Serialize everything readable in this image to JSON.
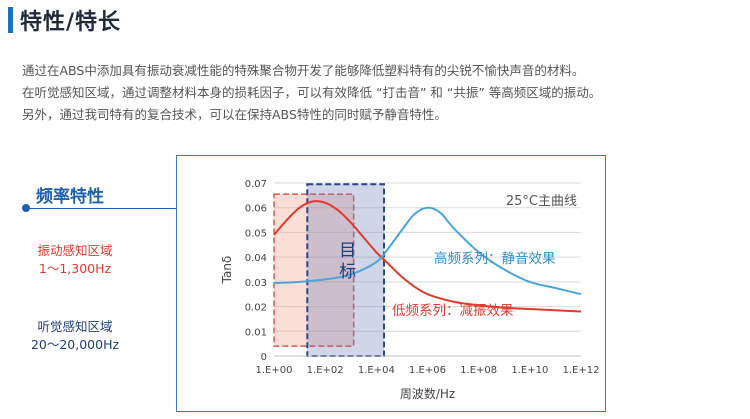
{
  "header": {
    "title": "特性/特长"
  },
  "intro": {
    "lines": [
      "通过在ABS中添加具有振动衰减性能的特殊聚合物开发了能够降低塑料特有的尖锐不愉快声音的材料。",
      "在听觉感知区域，通过调整材料本身的损耗因子，可以有效降低 “打击音” 和 “共振” 等高频区域的振动。",
      "另外，通过我司特有的复合技术，可以在保持ABS特性的同时赋予静音特性。"
    ]
  },
  "side": {
    "heading": "频率特性",
    "vib_label": "振动感知区域",
    "vib_range": "1～1,300Hz",
    "aud_label": "听觉感知区域",
    "aud_range": "20～20,000Hz"
  },
  "colors": {
    "accent": "#1f6fc5",
    "red": "#e03a2f",
    "blue": "#4aa6d6",
    "navy": "#1d3f7a"
  },
  "chart_data": {
    "type": "line",
    "annotation_top": "25°C主曲线",
    "target_label": "目标",
    "xlabel": "周波数/Hz",
    "ylabel": "Tanδ",
    "x_scale": "log",
    "xlim": [
      1,
      1000000000000
    ],
    "ylim": [
      0,
      0.07
    ],
    "x_ticks": [
      "1.E+00",
      "1.E+02",
      "1.E+04",
      "1.E+06",
      "1.E+08",
      "1.E+10",
      "1.E+12"
    ],
    "y_ticks": [
      "0",
      "0.01",
      "0.02",
      "0.03",
      "0.04",
      "0.05",
      "0.06",
      "0.07"
    ],
    "grid": true,
    "regions": [
      {
        "name": "振动感知区域",
        "x_range": [
          1,
          1300
        ],
        "color": "#e03a2f"
      },
      {
        "name": "目标",
        "x_range": [
          20,
          20000
        ],
        "color": "#1d3f7a"
      }
    ],
    "series": [
      {
        "name": "低频系列：减振效果",
        "color": "#e03a2f",
        "points": [
          [
            1,
            0.049
          ],
          [
            3.16,
            0.055
          ],
          [
            10,
            0.06
          ],
          [
            31.6,
            0.0625
          ],
          [
            100,
            0.062
          ],
          [
            316,
            0.059
          ],
          [
            1000,
            0.054
          ],
          [
            3162,
            0.048
          ],
          [
            10000,
            0.042
          ],
          [
            31623,
            0.037
          ],
          [
            100000,
            0.032
          ],
          [
            316228,
            0.028
          ],
          [
            1000000,
            0.025
          ],
          [
            10000000,
            0.022
          ],
          [
            100000000,
            0.0205
          ],
          [
            1000000000,
            0.0195
          ],
          [
            10000000000,
            0.019
          ],
          [
            100000000000,
            0.0185
          ],
          [
            1000000000000,
            0.018
          ]
        ]
      },
      {
        "name": "高频系列：静音效果",
        "color": "#4aa6d6",
        "points": [
          [
            1,
            0.0295
          ],
          [
            10,
            0.03
          ],
          [
            100,
            0.031
          ],
          [
            1000,
            0.033
          ],
          [
            10000,
            0.038
          ],
          [
            31623,
            0.044
          ],
          [
            100000,
            0.051
          ],
          [
            316228,
            0.0575
          ],
          [
            1000000,
            0.06
          ],
          [
            3162278,
            0.058
          ],
          [
            10000000,
            0.052
          ],
          [
            100000000,
            0.042
          ],
          [
            1000000000,
            0.035
          ],
          [
            10000000000,
            0.03
          ],
          [
            100000000000,
            0.0275
          ],
          [
            1000000000000,
            0.025
          ]
        ]
      }
    ]
  }
}
